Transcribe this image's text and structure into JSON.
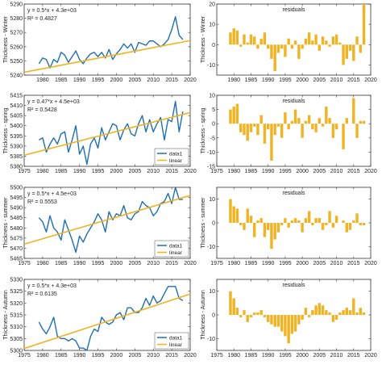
{
  "x_years": [
    1979,
    1980,
    1981,
    1982,
    1983,
    1984,
    1985,
    1986,
    1987,
    1988,
    1989,
    1990,
    1991,
    1992,
    1993,
    1994,
    1995,
    1996,
    1997,
    1998,
    1999,
    2000,
    2001,
    2002,
    2003,
    2004,
    2005,
    2006,
    2007,
    2008,
    2009,
    2010,
    2011,
    2012,
    2013,
    2014,
    2015,
    2016,
    2017,
    2018
  ],
  "colors": {
    "data": "#1f6fb4",
    "fit": "#f2b21c",
    "resid": "#f0b323",
    "axis": "#333333"
  },
  "chart_data": [
    {
      "type": "line",
      "ylabel": "Thickness - Winter",
      "ylim": [
        5240,
        5290
      ],
      "yticks": [
        5240,
        5250,
        5260,
        5270,
        5280,
        5290
      ],
      "xlim": [
        1975,
        2020
      ],
      "xticks": [
        1980,
        1985,
        1990,
        1995,
        2000,
        2005,
        2010,
        2015,
        2020
      ],
      "equation": "y = 0.5*x + 4.3e+03",
      "r2": "R² = 0.4827",
      "legend": [],
      "linear": {
        "x": [
          1975,
          2020
        ],
        "y": [
          5242.0,
          5264.3
        ]
      },
      "series": [
        {
          "name": "data1",
          "values": [
            5248,
            5252,
            5251,
            5245,
            5251,
            5249,
            5256,
            5254,
            5249,
            5253,
            5257,
            5251,
            5248,
            5252,
            5255,
            5256,
            5253,
            5256,
            5252,
            5258,
            5251,
            5255,
            5258,
            5262,
            5259,
            5262,
            5256,
            5263,
            5262,
            5261,
            5264,
            5264,
            5262,
            5260,
            5262,
            5265,
            5272,
            5281,
            5268,
            5265
          ]
        }
      ]
    },
    {
      "type": "bar",
      "title": "residuals",
      "ylim": [
        -15,
        20
      ],
      "yticks": [
        -10,
        0,
        10,
        20
      ],
      "xlim": [
        1975,
        2020
      ],
      "xticks": [
        1980,
        1985,
        1990,
        1995,
        2000,
        2005,
        2010,
        2015,
        2020
      ],
      "values": [
        6,
        8,
        7,
        -1,
        5,
        1,
        5,
        4,
        -2,
        3,
        6,
        -2,
        -7,
        -13,
        -4,
        -2,
        -6,
        3,
        -2,
        2,
        -7,
        -2,
        3,
        6,
        2,
        5,
        -3,
        4,
        2,
        -1,
        4,
        5,
        1,
        -10,
        -7,
        -3,
        -8,
        4,
        -4,
        20
      ]
    },
    {
      "type": "line",
      "ylabel": "Thickness - spring",
      "ylim": [
        5380,
        5415
      ],
      "yticks": [
        5380,
        5385,
        5390,
        5395,
        5400,
        5405,
        5410,
        5415
      ],
      "xlim": [
        1975,
        2020
      ],
      "xticks": [
        1975,
        1980,
        1985,
        1990,
        1995,
        2000,
        2005,
        2010,
        2015,
        2020
      ],
      "equation": "y = 0.47*x + 4.5e+03",
      "r2": "R² = 0.5428",
      "legend": [
        "data1",
        "linear"
      ],
      "linear": {
        "x": [
          1975,
          2020
        ],
        "y": [
          5385.5,
          5406.5
        ]
      },
      "series": [
        {
          "name": "data1",
          "values": [
            5393,
            5394,
            5387,
            5391,
            5394,
            5391,
            5396,
            5397,
            5387,
            5393,
            5400,
            5386,
            5390,
            5381,
            5391,
            5394,
            5389,
            5399,
            5393,
            5397,
            5401,
            5400,
            5393,
            5398,
            5401,
            5396,
            5395,
            5401,
            5405,
            5397,
            5403,
            5397,
            5401,
            5404,
            5393,
            5403,
            5402,
            5412,
            5397,
            5407
          ]
        }
      ]
    },
    {
      "type": "bar",
      "title": "residuals",
      "ylim": [
        -15,
        10
      ],
      "yticks": [
        -15,
        -10,
        -5,
        0,
        5,
        10
      ],
      "xlim": [
        1975,
        2020
      ],
      "xticks": [
        1975,
        1980,
        1985,
        1990,
        1995,
        2000,
        2005,
        2010,
        2015,
        2020
      ],
      "values": [
        5,
        6,
        7,
        -3,
        -4,
        -6,
        -3,
        -1,
        -4,
        3,
        -7,
        -2,
        -13,
        -4,
        -1,
        -5,
        4,
        -2,
        1,
        5,
        2,
        -5,
        1,
        3,
        -2,
        -3,
        2,
        -1,
        6,
        2,
        -5,
        -2,
        0,
        -9,
        2,
        0,
        9,
        -5,
        1,
        1
      ]
    },
    {
      "type": "line",
      "ylabel": "Thickness - summer",
      "ylim": [
        5465,
        5500
      ],
      "yticks": [
        5465,
        5470,
        5475,
        5480,
        5485,
        5490,
        5495,
        5500
      ],
      "xlim": [
        1975,
        2020
      ],
      "xticks": [
        1975,
        1980,
        1985,
        1990,
        1995,
        2000,
        2005,
        2010,
        2015,
        2020
      ],
      "equation": "y = 0.5*x + 4.5e+03",
      "r2": "R² = 0.5553",
      "legend": [
        "data1",
        "linear"
      ],
      "linear": {
        "x": [
          1975,
          2020
        ],
        "y": [
          5472.0,
          5496.0
        ]
      },
      "series": [
        {
          "name": "data1",
          "values": [
            5485,
            5483,
            5478,
            5486,
            5480,
            5478,
            5474,
            5484,
            5479,
            5474,
            5468,
            5476,
            5473,
            5477,
            5480,
            5483,
            5487,
            5484,
            5478,
            5488,
            5484,
            5487,
            5486,
            5491,
            5485,
            5484,
            5487,
            5488,
            5493,
            5491,
            5490,
            5486,
            5488,
            5492,
            5493,
            5497,
            5492,
            5500,
            5494,
            5494
          ]
        }
      ]
    },
    {
      "type": "bar",
      "title": "residuals",
      "ylim": [
        -15,
        15
      ],
      "yticks": [
        -10,
        0,
        10
      ],
      "xlim": [
        1975,
        2020
      ],
      "xticks": [
        1975,
        1980,
        1985,
        1990,
        1995,
        2000,
        2005,
        2010,
        2015,
        2020
      ],
      "values": [
        10,
        7,
        6,
        -1,
        -3,
        6,
        3,
        -6,
        1,
        2,
        -6,
        -3,
        -11,
        -7,
        -4,
        -1,
        2,
        -2,
        1,
        2,
        1,
        -4,
        2,
        5,
        -1,
        2,
        2,
        -3,
        -1,
        5,
        -2,
        3,
        0,
        1,
        -4,
        -3,
        1,
        4,
        -1,
        -1
      ]
    },
    {
      "type": "line",
      "ylabel": "Thickness - Autumn",
      "ylim": [
        5300,
        5330
      ],
      "yticks": [
        5300,
        5305,
        5310,
        5315,
        5320,
        5325,
        5330
      ],
      "xlim": [
        1975,
        2020
      ],
      "xticks": [
        1975,
        1980,
        1985,
        1990,
        1995,
        2000,
        2005,
        2010,
        2015,
        2020
      ],
      "equation": "y = 0.5*x + 4.3e+03",
      "r2": "R² = 0.6135",
      "legend": [
        "data1",
        "linear"
      ],
      "linear": {
        "x": [
          1975,
          2020
        ],
        "y": [
          5300.8,
          5323.8
        ]
      },
      "series": [
        {
          "name": "data1",
          "values": [
            5312,
            5309,
            5307,
            5310,
            5314,
            5306,
            5305,
            5305,
            5304,
            5305,
            5304,
            5301,
            5301,
            5300,
            5306,
            5309,
            5308,
            5314,
            5312,
            5311,
            5312,
            5315,
            5316,
            5313,
            5318,
            5318,
            5316,
            5316,
            5318,
            5322,
            5319,
            5323,
            5320,
            5321,
            5324,
            5327,
            5327,
            5327,
            5322,
            5321
          ]
        }
      ]
    },
    {
      "type": "bar",
      "title": "residuals",
      "ylim": [
        -15,
        15
      ],
      "yticks": [
        -10,
        0,
        10
      ],
      "xlim": [
        1975,
        2020
      ],
      "xticks": [
        1975,
        1980,
        1985,
        1990,
        1995,
        2000,
        2005,
        2010,
        2015,
        2020
      ],
      "values": [
        10,
        7,
        3,
        -1,
        2,
        -3,
        -1,
        1,
        1,
        2,
        -1,
        -3,
        -4,
        -5,
        -5,
        -7,
        -9,
        -12,
        -8,
        -7,
        -4,
        -2,
        3,
        -1,
        2,
        4,
        5,
        4,
        2,
        1,
        -3,
        -2,
        1,
        2,
        3,
        2,
        7,
        1,
        3,
        1
      ]
    }
  ]
}
